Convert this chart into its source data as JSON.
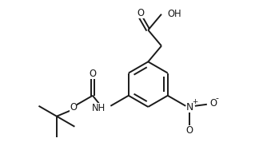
{
  "bg_color": "#ffffff",
  "line_color": "#1a1a1a",
  "line_width": 1.4,
  "font_size": 7.8,
  "figsize": [
    3.34,
    1.98
  ],
  "dpi": 100,
  "xlim": [
    0,
    10.0
  ],
  "ylim": [
    0,
    5.9
  ]
}
